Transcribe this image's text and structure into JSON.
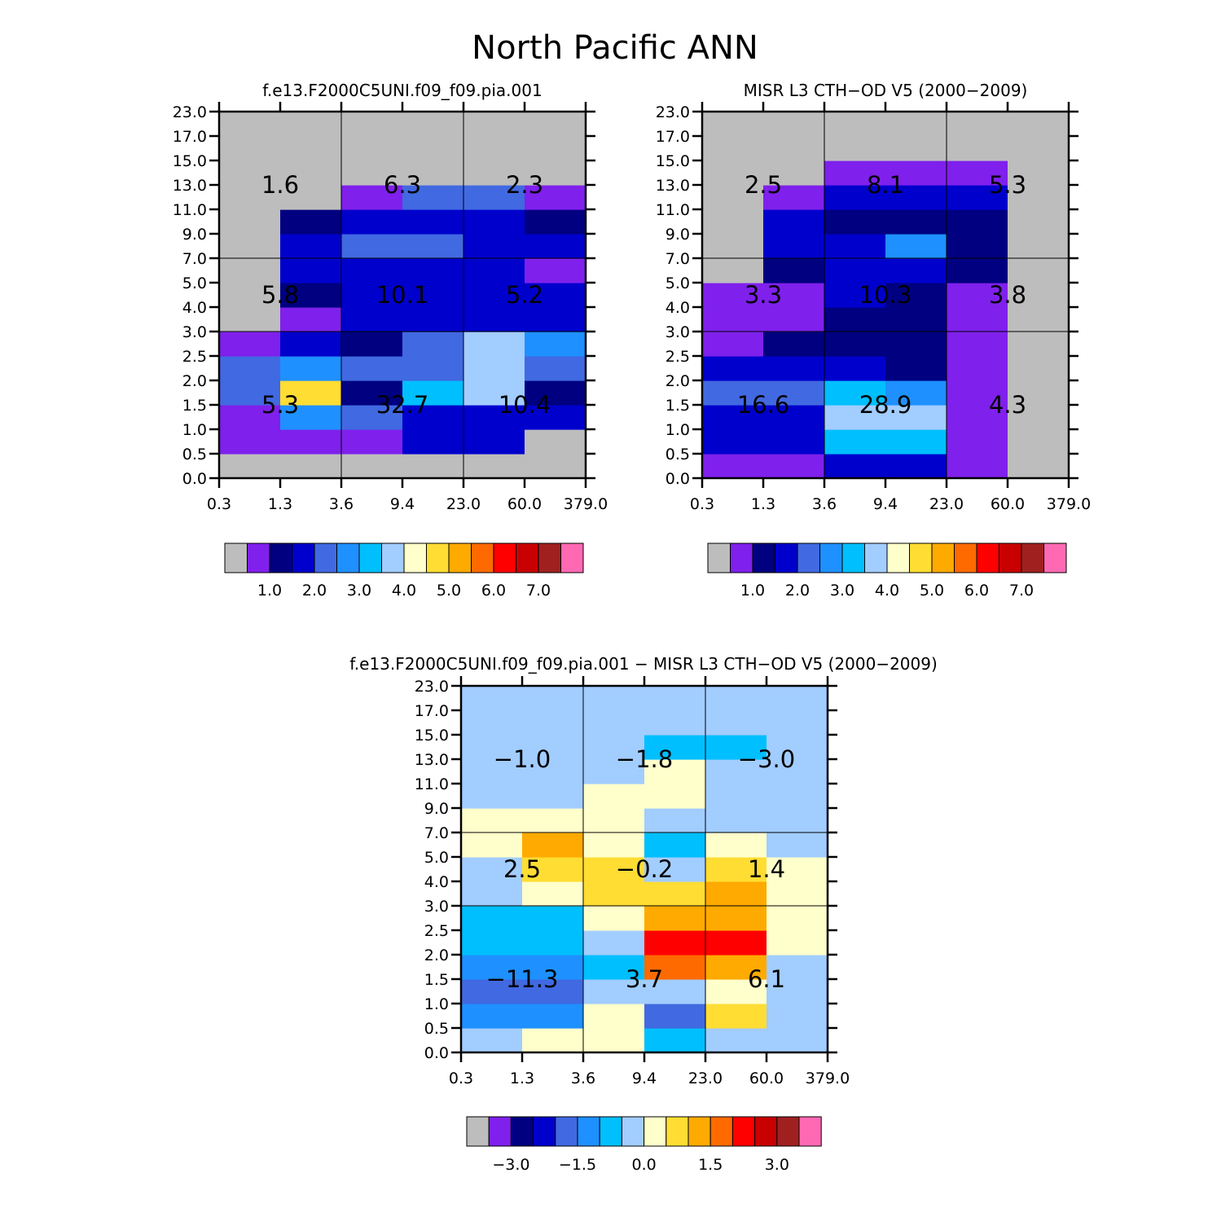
{
  "title": "North Pacific ANN",
  "chart_data": [
    {
      "type": "heatmap",
      "subtitle": "f.e13.F2000C5UNI.f09_f09.pia.001",
      "x_tick_labels": [
        "0.3",
        "1.3",
        "3.6",
        "9.4",
        "23.0",
        "60.0",
        "379.0"
      ],
      "y_tick_labels": [
        "0.0",
        "0.5",
        "1.0",
        "1.5",
        "2.0",
        "2.5",
        "3.0",
        "4.0",
        "5.0",
        "7.0",
        "9.0",
        "11.0",
        "13.0",
        "15.0",
        "17.0",
        "23.0"
      ],
      "cells": [
        [
          0,
          1,
          1,
          4,
          4,
          1,
          0,
          0,
          0,
          0,
          0,
          0,
          0,
          0,
          0
        ],
        [
          0,
          1,
          5,
          9,
          5,
          3,
          1,
          2,
          3,
          3,
          2,
          0,
          0,
          0,
          0
        ],
        [
          0,
          1,
          4,
          2,
          4,
          2,
          3,
          3,
          3,
          4,
          3,
          1,
          0,
          0,
          0
        ],
        [
          0,
          3,
          3,
          6,
          4,
          4,
          3,
          3,
          3,
          4,
          3,
          4,
          0,
          0,
          0
        ],
        [
          0,
          3,
          3,
          7,
          7,
          7,
          3,
          3,
          3,
          3,
          3,
          4,
          0,
          0,
          0
        ],
        [
          0,
          0,
          3,
          2,
          4,
          5,
          3,
          3,
          1,
          3,
          2,
          1,
          0,
          0,
          0
        ],
        [
          0,
          0,
          0,
          0,
          0,
          0,
          0,
          0,
          0,
          0,
          0,
          0,
          0,
          0,
          0
        ]
      ],
      "region_values": [
        [
          "5.3",
          "32.7",
          "10.4"
        ],
        [
          "5.8",
          "10.1",
          "5.2"
        ],
        [
          "1.6",
          "6.3",
          "2.3"
        ]
      ],
      "colorbar": {
        "colors": [
          "#bdbdbd",
          "#7f20ec",
          "#000080",
          "#0000cd",
          "#4169e1",
          "#1e90ff",
          "#00bfff",
          "#a2cdff",
          "#ffffcc",
          "#ffdd33",
          "#ffaa00",
          "#ff6a00",
          "#ff0000",
          "#c80000",
          "#a02020",
          "#ff69b4"
        ],
        "labels": [
          "1.0",
          "2.0",
          "3.0",
          "4.0",
          "5.0",
          "6.0",
          "7.0"
        ],
        "label_start_box": 2
      }
    },
    {
      "type": "heatmap",
      "subtitle": "MISR L3 CTH-OD V5 (2000-2009)",
      "x_tick_labels": [
        "0.3",
        "1.3",
        "3.6",
        "9.4",
        "23.0",
        "60.0",
        "379.0"
      ],
      "y_tick_labels": [
        "0.0",
        "0.5",
        "1.0",
        "1.5",
        "2.0",
        "2.5",
        "3.0",
        "4.0",
        "5.0",
        "7.0",
        "9.0",
        "11.0",
        "13.0",
        "15.0",
        "17.0",
        "23.0"
      ],
      "cells": [
        [
          1,
          3,
          3,
          4,
          3,
          1,
          1,
          1,
          0,
          0,
          0,
          0,
          0,
          0,
          0
        ],
        [
          1,
          3,
          3,
          4,
          3,
          2,
          1,
          1,
          2,
          3,
          3,
          1,
          0,
          0,
          0
        ],
        [
          3,
          6,
          7,
          6,
          3,
          2,
          2,
          3,
          3,
          3,
          2,
          3,
          1,
          0,
          0
        ],
        [
          3,
          6,
          7,
          5,
          2,
          2,
          2,
          2,
          3,
          5,
          2,
          3,
          1,
          0,
          0
        ],
        [
          1,
          1,
          1,
          1,
          1,
          1,
          1,
          1,
          2,
          2,
          2,
          3,
          1,
          0,
          0
        ],
        [
          0,
          0,
          0,
          0,
          0,
          0,
          0,
          0,
          0,
          0,
          0,
          0,
          0,
          0,
          0
        ]
      ],
      "cell_rows_are_columns": true,
      "region_values": [
        [
          "16.6",
          "28.9",
          "4.3"
        ],
        [
          "3.3",
          "10.3",
          "3.8"
        ],
        [
          "2.5",
          "8.1",
          "5.3"
        ]
      ],
      "colorbar": {
        "colors": [
          "#bdbdbd",
          "#7f20ec",
          "#000080",
          "#0000cd",
          "#4169e1",
          "#1e90ff",
          "#00bfff",
          "#a2cdff",
          "#ffffcc",
          "#ffdd33",
          "#ffaa00",
          "#ff6a00",
          "#ff0000",
          "#c80000",
          "#a02020",
          "#ff69b4"
        ],
        "labels": [
          "1.0",
          "2.0",
          "3.0",
          "4.0",
          "5.0",
          "6.0",
          "7.0"
        ],
        "label_start_box": 2
      }
    },
    {
      "type": "heatmap",
      "subtitle": "f.e13.F2000C5UNI.f09_f09.pia.001 - MISR L3 CTH-OD V5 (2000-2009)",
      "x_tick_labels": [
        "0.3",
        "1.3",
        "3.6",
        "9.4",
        "23.0",
        "60.0",
        "379.0"
      ],
      "y_tick_labels": [
        "0.0",
        "0.5",
        "1.0",
        "1.5",
        "2.0",
        "2.5",
        "3.0",
        "4.0",
        "5.0",
        "7.0",
        "9.0",
        "11.0",
        "13.0",
        "15.0",
        "17.0",
        "23.0"
      ],
      "cells": [
        [
          7,
          5,
          4,
          5,
          6,
          6,
          7,
          7,
          8,
          8,
          7,
          7,
          7,
          7,
          7
        ],
        [
          8,
          5,
          4,
          5,
          6,
          6,
          8,
          9,
          10,
          8,
          7,
          7,
          7,
          7,
          7
        ],
        [
          8,
          8,
          7,
          6,
          7,
          8,
          9,
          9,
          8,
          8,
          8,
          7,
          7,
          7,
          7
        ],
        [
          6,
          4,
          7,
          11,
          12,
          10,
          9,
          7,
          6,
          7,
          8,
          8,
          6,
          7,
          7
        ],
        [
          7,
          9,
          8,
          10,
          12,
          10,
          10,
          9,
          8,
          7,
          7,
          7,
          6,
          7,
          7
        ],
        [
          7,
          7,
          7,
          7,
          8,
          8,
          8,
          8,
          7,
          7,
          7,
          7,
          7,
          7,
          7
        ]
      ],
      "cell_rows_are_columns": true,
      "region_values": [
        [
          "-11.3",
          "3.7",
          "6.1"
        ],
        [
          "2.5",
          "-0.2",
          "1.4"
        ],
        [
          "-1.0",
          "-1.8",
          "-3.0"
        ]
      ],
      "colorbar": {
        "colors": [
          "#bdbdbd",
          "#7f20ec",
          "#000080",
          "#0000cd",
          "#4169e1",
          "#1e90ff",
          "#00bfff",
          "#a2cdff",
          "#ffffcc",
          "#ffdd33",
          "#ffaa00",
          "#ff6a00",
          "#ff0000",
          "#c80000",
          "#a02020",
          "#ff69b4"
        ],
        "labels": [
          "-3.0",
          "-1.5",
          "0.0",
          "1.5",
          "3.0"
        ],
        "label_start_box": 2,
        "label_step": 1.5
      }
    }
  ]
}
